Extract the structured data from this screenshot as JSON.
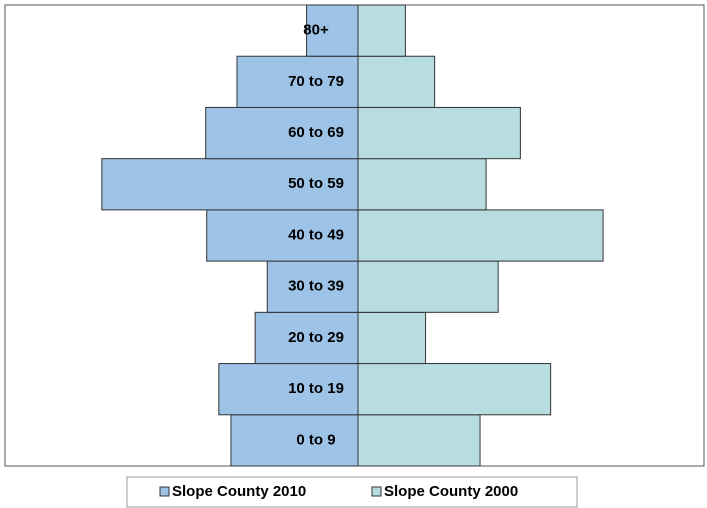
{
  "chart_data": {
    "type": "pyramid",
    "categories": [
      "0 to 9",
      "10 to 19",
      "20 to 29",
      "30 to 39",
      "40 to 49",
      "50 to 59",
      "60 to 69",
      "70 to 79",
      "80+"
    ],
    "series": [
      {
        "name": "Slope County 2010",
        "color": "#9dc3e6",
        "side": "left",
        "values": [
          126,
          138,
          102,
          90,
          150,
          254,
          151,
          120,
          51
        ]
      },
      {
        "name": "Slope County 2000",
        "color": "#b7dde0",
        "side": "right",
        "values": [
          121,
          191,
          67,
          139,
          243,
          127,
          161,
          76,
          47
        ]
      }
    ],
    "xlim": [
      0,
      350
    ]
  }
}
